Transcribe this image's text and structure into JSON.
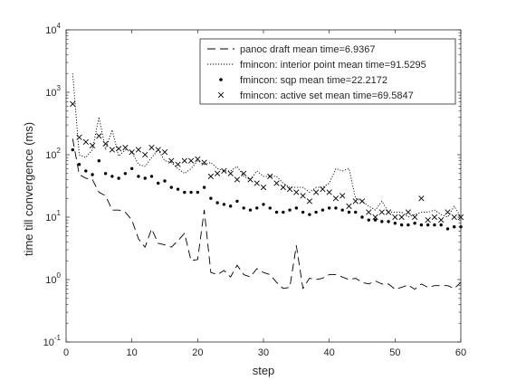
{
  "chart_data": {
    "type": "line",
    "title": "",
    "xlabel": "step",
    "ylabel": "time till convergence (ms)",
    "xlim": [
      0,
      60
    ],
    "ylim": [
      0.1,
      10000
    ],
    "yscale": "log",
    "grid": false,
    "legend_position": "top-right",
    "x_ticks": [
      0,
      10,
      20,
      30,
      40,
      50,
      60
    ],
    "x_tick_labels": [
      "0",
      "10",
      "20",
      "30",
      "40",
      "50",
      "60"
    ],
    "y_ticks": [
      0.1,
      1,
      10,
      100,
      1000,
      10000
    ],
    "y_tick_labels": [
      {
        "base": "10",
        "exp": "-1"
      },
      {
        "base": "10",
        "exp": "0"
      },
      {
        "base": "10",
        "exp": "1"
      },
      {
        "base": "10",
        "exp": "2"
      },
      {
        "base": "10",
        "exp": "3"
      },
      {
        "base": "10",
        "exp": "4"
      }
    ],
    "x": [
      1,
      2,
      3,
      4,
      5,
      6,
      7,
      8,
      9,
      10,
      11,
      12,
      13,
      14,
      15,
      16,
      17,
      18,
      19,
      20,
      21,
      22,
      23,
      24,
      25,
      26,
      27,
      28,
      29,
      30,
      31,
      32,
      33,
      34,
      35,
      36,
      37,
      38,
      39,
      40,
      41,
      42,
      43,
      44,
      45,
      46,
      47,
      48,
      49,
      50,
      51,
      52,
      53,
      54,
      55,
      56,
      57,
      58,
      59,
      60
    ],
    "series": [
      {
        "name": "panoc draft mean time=6.9367",
        "style": "dashed",
        "color": "#000000",
        "values": [
          180,
          48,
          42,
          40,
          25,
          22,
          13,
          13,
          12,
          9,
          4.5,
          3.3,
          6.5,
          3.8,
          3.6,
          3.3,
          4.2,
          5.5,
          2.0,
          2.1,
          13.0,
          1.3,
          1.2,
          1.4,
          1.1,
          1.7,
          1.2,
          1.1,
          1.5,
          1.3,
          1.2,
          0.9,
          0.72,
          0.75,
          3.5,
          0.72,
          1.05,
          1.0,
          1.05,
          1.2,
          1.2,
          1.1,
          1.0,
          1.05,
          0.9,
          0.85,
          0.95,
          0.85,
          0.85,
          0.7,
          0.75,
          0.82,
          0.7,
          0.85,
          0.75,
          0.8,
          0.8,
          0.8,
          0.72,
          0.9
        ]
      },
      {
        "name": "fmincon: interior point mean time=91.5295",
        "style": "dotted",
        "color": "#000000",
        "values": [
          2000,
          100,
          90,
          120,
          400,
          120,
          250,
          95,
          120,
          110,
          70,
          65,
          90,
          120,
          80,
          75,
          60,
          50,
          60,
          80,
          70,
          75,
          60,
          55,
          55,
          65,
          45,
          40,
          55,
          45,
          45,
          45,
          35,
          30,
          30,
          30,
          25,
          30,
          30,
          35,
          60,
          55,
          60,
          20,
          18,
          15,
          13,
          18,
          12,
          12,
          12,
          10,
          11,
          12,
          12,
          13,
          11,
          10,
          15,
          10
        ]
      },
      {
        "name": "fmincon: sqp mean time=22.2172",
        "style": "dots",
        "color": "#000000",
        "values": [
          120,
          70,
          55,
          48,
          80,
          50,
          45,
          42,
          50,
          60,
          45,
          42,
          45,
          35,
          38,
          30,
          28,
          25,
          25,
          25,
          30,
          20,
          17,
          16,
          15,
          18,
          14,
          13,
          14,
          16,
          14,
          12,
          12,
          13,
          14,
          12,
          11,
          12,
          13,
          14,
          14,
          13,
          12,
          12,
          10,
          9,
          9,
          8.5,
          8.5,
          8,
          7.5,
          7.5,
          8,
          7.5,
          7.5,
          7.5,
          7.5,
          6.5,
          7,
          7
        ]
      },
      {
        "name": "fmincon: active set mean time=69.5847",
        "style": "x-markers",
        "color": "#000000",
        "values": [
          650,
          190,
          160,
          140,
          200,
          150,
          120,
          125,
          130,
          110,
          120,
          100,
          130,
          120,
          110,
          80,
          70,
          80,
          80,
          85,
          75,
          45,
          50,
          55,
          50,
          40,
          50,
          40,
          35,
          30,
          45,
          35,
          30,
          28,
          25,
          22,
          18,
          25,
          28,
          25,
          20,
          22,
          15,
          18,
          18,
          12,
          10,
          12,
          12,
          10,
          10,
          12,
          10,
          20,
          9,
          10,
          9,
          12,
          10,
          10
        ]
      }
    ]
  }
}
